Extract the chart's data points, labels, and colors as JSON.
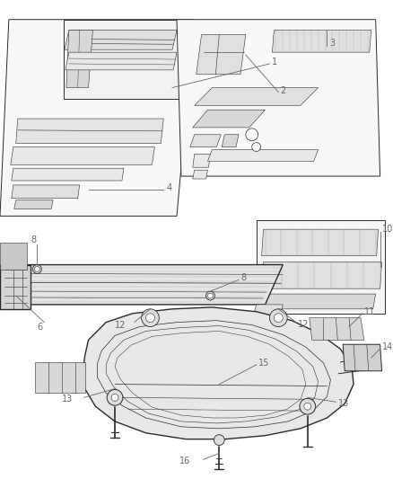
{
  "background_color": "#ffffff",
  "line_color": "#2a2a2a",
  "label_color": "#666666",
  "fig_width": 4.38,
  "fig_height": 5.33,
  "dpi": 100,
  "label_fontsize": 7.0
}
